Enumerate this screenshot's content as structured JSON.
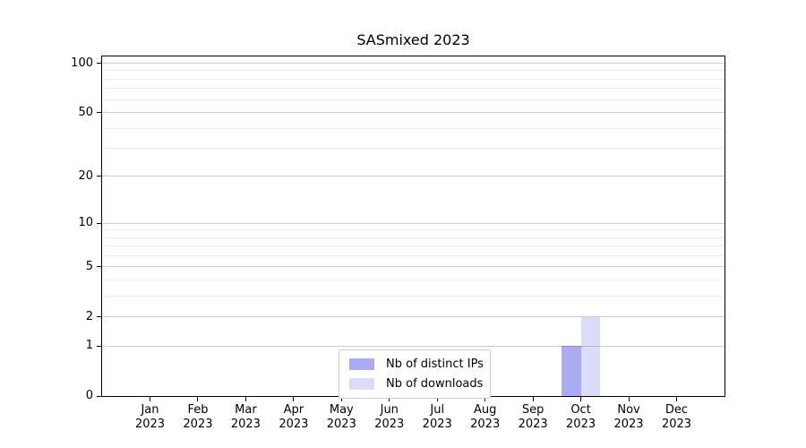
{
  "title": "SASmixed 2023",
  "chart_data": {
    "type": "bar",
    "title": "SASmixed 2023",
    "categories": [
      "Jan",
      "Feb",
      "Mar",
      "Apr",
      "May",
      "Jun",
      "Jul",
      "Aug",
      "Sep",
      "Oct",
      "Nov",
      "Dec"
    ],
    "x_tick_year": "2023",
    "series": [
      {
        "name": "Nb of distinct IPs",
        "values": [
          0,
          0,
          0,
          0,
          0,
          0,
          0,
          0,
          0,
          1,
          0,
          0
        ],
        "fill": "rgba(0,0,220,0.33)",
        "swatch": "#ababf3"
      },
      {
        "name": "Nb of downloads",
        "values": [
          0,
          0,
          0,
          0,
          0,
          0,
          0,
          0,
          0,
          2,
          0,
          0
        ],
        "fill": "rgba(0,0,220,0.14)",
        "swatch": "#dcdcf9"
      }
    ],
    "xlabel": "",
    "ylabel": "",
    "yscale": "log1p",
    "ylim": [
      0,
      110
    ],
    "yticks": [
      0,
      1,
      2,
      5,
      10,
      20,
      50,
      100
    ],
    "minor_yticks": [
      3,
      4,
      6,
      7,
      8,
      9,
      30,
      40,
      60,
      70,
      80,
      90
    ],
    "grid": true,
    "legend_position": "lower center"
  },
  "colors": {
    "axis": "#000000",
    "grid_major": "#cccccc",
    "grid_minor": "#ededed",
    "legend_border": "#cccccc",
    "background": "#ffffff"
  }
}
